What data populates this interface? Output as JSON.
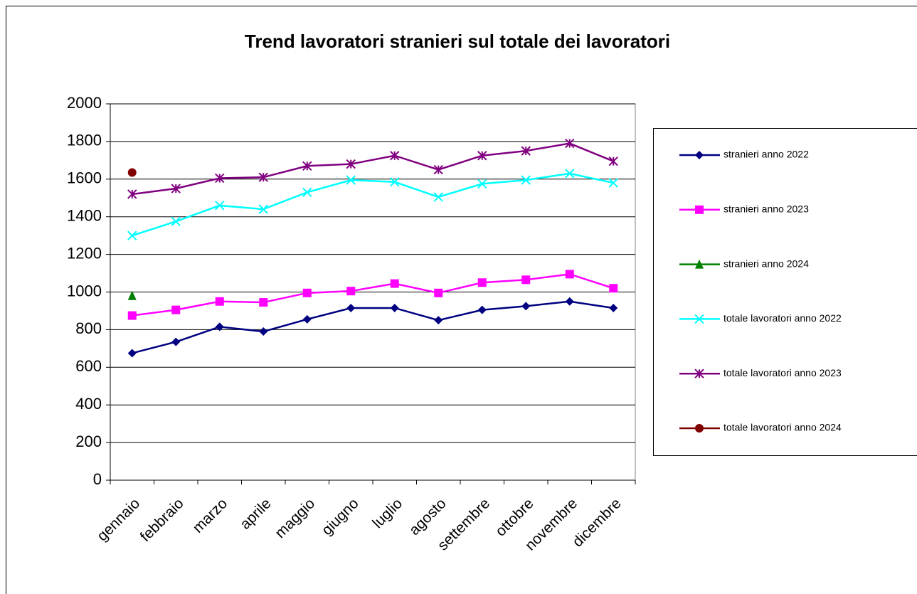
{
  "chart_data": {
    "type": "line",
    "title": "Trend lavoratori stranieri sul totale dei lavoratori",
    "categories": [
      "gennaio",
      "febbraio",
      "marzo",
      "aprile",
      "maggio",
      "giugno",
      "luglio",
      "agosto",
      "settembre",
      "ottobre",
      "novembre",
      "dicembre"
    ],
    "series": [
      {
        "name": "stranieri anno 2022",
        "color": "#000080",
        "marker": "diamond",
        "values": [
          675,
          735,
          815,
          790,
          855,
          915,
          915,
          850,
          905,
          925,
          950,
          915
        ]
      },
      {
        "name": "stranieri anno 2023",
        "color": "#ff00ff",
        "marker": "square",
        "values": [
          875,
          905,
          950,
          945,
          995,
          1005,
          1045,
          995,
          1050,
          1065,
          1095,
          1020
        ]
      },
      {
        "name": "stranieri anno 2024",
        "color": "#008000",
        "marker": "triangle",
        "values": [
          980,
          null,
          null,
          null,
          null,
          null,
          null,
          null,
          null,
          null,
          null,
          null
        ]
      },
      {
        "name": "totale lavoratori anno 2022",
        "color": "#00ffff",
        "marker": "x",
        "values": [
          1300,
          1375,
          1460,
          1440,
          1530,
          1595,
          1585,
          1505,
          1575,
          1595,
          1630,
          1580
        ]
      },
      {
        "name": "totale lavoratori anno 2023",
        "color": "#800080",
        "marker": "asterisk",
        "values": [
          1520,
          1550,
          1605,
          1610,
          1670,
          1680,
          1725,
          1650,
          1725,
          1750,
          1790,
          1695
        ]
      },
      {
        "name": "totale lavoratori anno 2024",
        "color": "#800000",
        "marker": "circle",
        "values": [
          1635,
          null,
          null,
          null,
          null,
          null,
          null,
          null,
          null,
          null,
          null,
          null
        ]
      }
    ],
    "ylim": [
      0,
      2000
    ],
    "yticks": [
      0,
      200,
      400,
      600,
      800,
      1000,
      1200,
      1400,
      1600,
      1800,
      2000
    ],
    "grid": true
  }
}
